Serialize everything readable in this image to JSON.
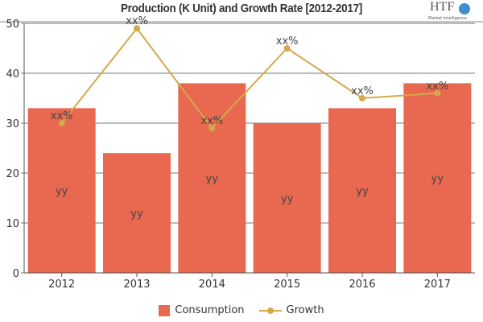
{
  "chart_data": {
    "type": "bar",
    "title": "Production (K Unit) and Growth Rate [2012-2017]",
    "categories": [
      "2012",
      "2013",
      "2014",
      "2015",
      "2016",
      "2017"
    ],
    "series": [
      {
        "name": "Consumption",
        "type": "bar",
        "values": [
          33,
          24,
          38,
          30,
          33,
          38
        ],
        "labels": [
          "yy",
          "yy",
          "yy",
          "yy",
          "yy",
          "yy"
        ],
        "color": "#e8694f"
      },
      {
        "name": "Growth",
        "type": "line",
        "values": [
          30,
          49,
          29,
          45,
          35,
          36
        ],
        "labels": [
          "xx%",
          "xx%",
          "xx%",
          "xx%",
          "xx%",
          "xx%"
        ],
        "color": "#d4a84b"
      }
    ],
    "ylim": [
      0,
      50
    ],
    "yticks": [
      0,
      10,
      20,
      30,
      40,
      50
    ],
    "grid": true,
    "legend": "bottom"
  },
  "logo": {
    "text": "HTF",
    "subtext": "Market Intelligence"
  }
}
